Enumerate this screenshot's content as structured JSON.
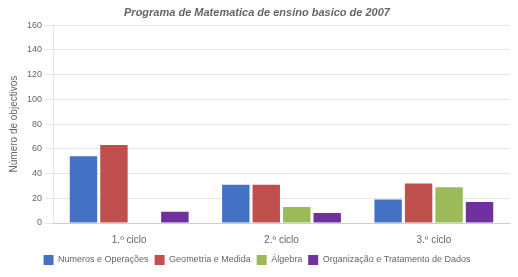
{
  "chart_data": {
    "type": "bar",
    "title": "Programa de Matematica de ensino basico de 2007",
    "categories": [
      "1.º ciclo",
      "2.º ciclo",
      "3.º ciclo"
    ],
    "series": [
      {
        "name": "Numeros e Operações",
        "color": "#4472c4",
        "values": [
          54,
          31,
          19
        ]
      },
      {
        "name": "Geometria e Medida",
        "color": "#c0504d",
        "values": [
          63,
          31,
          32
        ]
      },
      {
        "name": "Álgebra",
        "color": "#9bbb59",
        "values": [
          0,
          13,
          29
        ]
      },
      {
        "name": "Organização e Tratamento de Dados",
        "color": "#7030a0",
        "values": [
          9,
          8,
          17
        ]
      }
    ],
    "ylabel": "Número de objectivos",
    "ylim": [
      0,
      160
    ],
    "yticks": [
      0,
      20,
      40,
      60,
      80,
      100,
      120,
      140,
      160
    ],
    "grid": true,
    "legend": "bottom"
  }
}
